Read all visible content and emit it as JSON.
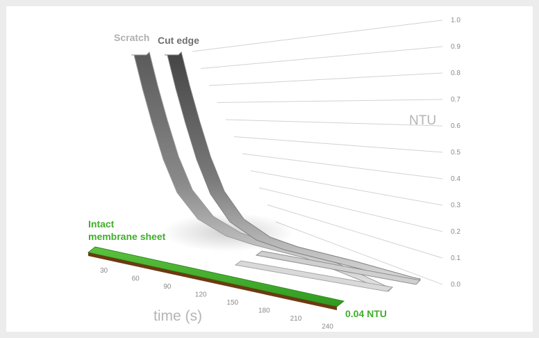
{
  "chart_data": {
    "type": "line",
    "title": "",
    "xlabel": "time (s)",
    "ylabel": "NTU",
    "x": [
      30,
      60,
      90,
      120,
      150,
      180,
      210,
      240
    ],
    "x_ticks": [
      "30",
      "60",
      "90",
      "120",
      "150",
      "180",
      "210",
      "240"
    ],
    "y_ticks": [
      "0.0",
      "0.1",
      "0.2",
      "0.3",
      "0.4",
      "0.5",
      "0.6",
      "0.7",
      "0.8",
      "0.9",
      "1.0"
    ],
    "ylim": [
      0,
      1.0
    ],
    "grid": true,
    "series": [
      {
        "name": "Scratch",
        "values": [
          1.0,
          0.68,
          0.35,
          0.14,
          0.07,
          0.05,
          0.04,
          0.04
        ],
        "color": "#9a9a9a"
      },
      {
        "name": "Cut edge",
        "values": [
          1.0,
          0.7,
          0.38,
          0.16,
          0.08,
          0.05,
          0.04,
          0.04
        ],
        "color": "#6a6a6a"
      },
      {
        "name": "Intact membrane sheet",
        "values": [
          0.04,
          0.04,
          0.04,
          0.04,
          0.04,
          0.04,
          0.04,
          0.04
        ],
        "color": "#3fae2a"
      }
    ],
    "annotation": "0.04 NTU"
  }
}
